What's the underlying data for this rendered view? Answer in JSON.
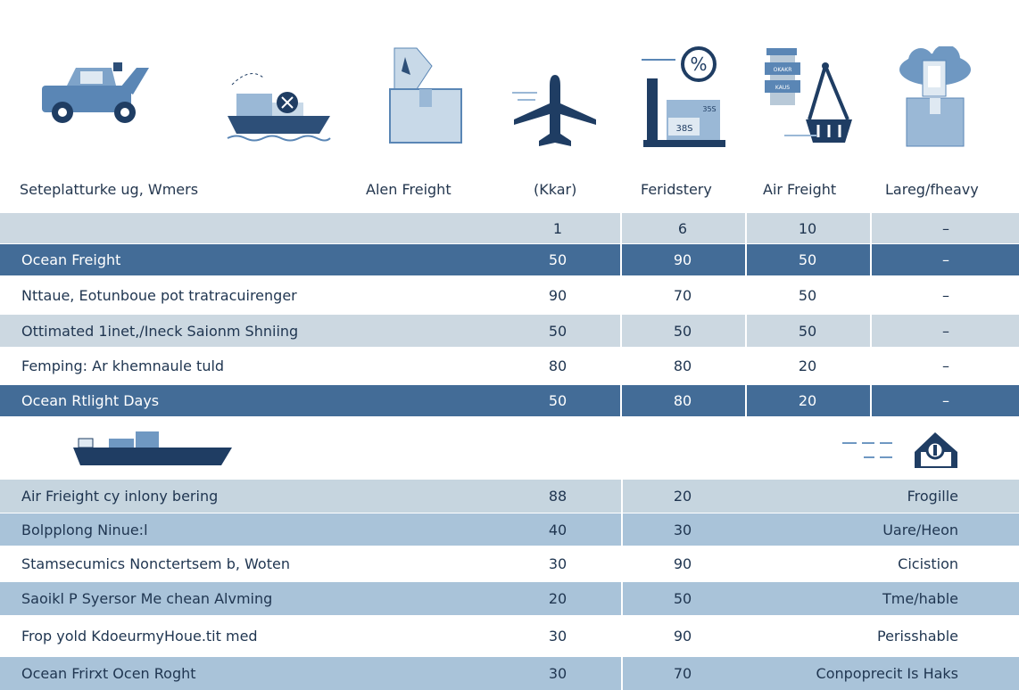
{
  "colors": {
    "dark": "#436c97",
    "light": "#ccd8e1",
    "blue": "#a9c3d9",
    "navy": "#1f3d63"
  },
  "icons": [
    "truck-icon",
    "cargo-ship-icon",
    "package-box-icon",
    "airplane-icon",
    "scale-percent-icon",
    "crane-basket-icon",
    "cloud-box-icon",
    "container-ship-icon",
    "home-delivery-icon"
  ],
  "icon_text": {
    "scale_labels": [
      "35S",
      "38S"
    ],
    "stack_labels": [
      "OKAKR",
      "KAUS"
    ]
  },
  "header": [
    "Seteplatturke ug, Wmers",
    "Alen Freight",
    "(Kkar)",
    "Feridstery",
    "Air Freight",
    "Lareg/fheavy"
  ],
  "top_rows": [
    {
      "label": "",
      "values": [
        "1",
        "6",
        "10",
        "–"
      ],
      "style": "light"
    },
    {
      "label": "Ocean Freight",
      "values": [
        "50",
        "90",
        "50",
        "–"
      ],
      "style": "dark"
    },
    {
      "label": "Nttaue, Eotunboue pot tratracuirenger",
      "values": [
        "90",
        "70",
        "50",
        "–"
      ],
      "style": "white"
    },
    {
      "label": "Ottimated 1inet,/Ineck Saionm Shniing",
      "values": [
        "50",
        "50",
        "50",
        "–"
      ],
      "style": "light"
    },
    {
      "label": "Femping: Ar khemnaule tuld",
      "values": [
        "80",
        "80",
        "20",
        "–"
      ],
      "style": "white"
    },
    {
      "label": "Ocean Rtlight Days",
      "values": [
        "50",
        "80",
        "20",
        "–"
      ],
      "style": "dark"
    }
  ],
  "bottom_rows": [
    {
      "label": "Air Frieight cy inlony bering",
      "values": [
        "88",
        "20"
      ],
      "note": "Frogille",
      "style": "pale"
    },
    {
      "label": "Bolpplong Ninue:l",
      "values": [
        "40",
        "30"
      ],
      "note": "Uare/Heon",
      "style": "blue"
    },
    {
      "label": "Stamsecumics Nonctertsem b, Woten",
      "values": [
        "30",
        "90"
      ],
      "note": "Cicistion",
      "style": "white"
    },
    {
      "label": "Saoikl P Syersor Me chean Alvming",
      "values": [
        "20",
        "50"
      ],
      "note": "Tme/hable",
      "style": "blue"
    },
    {
      "label": "Frop yold KdoeurmyHoue.tit med",
      "values": [
        "30",
        "90"
      ],
      "note": "Perisshable",
      "style": "white"
    },
    {
      "label": "Ocean Frirxt Ocen Roght",
      "values": [
        "30",
        "70"
      ],
      "note": "Conpoprecit Is Haks",
      "style": "blue"
    }
  ]
}
